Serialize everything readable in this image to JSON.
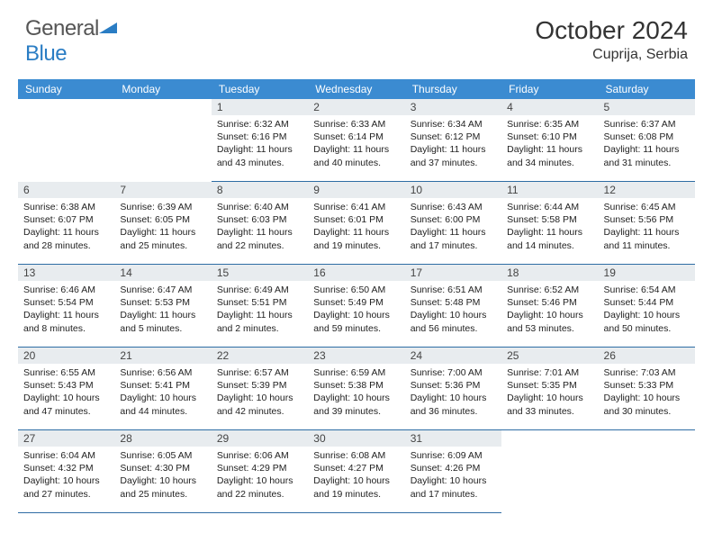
{
  "logo": {
    "text_a": "General",
    "text_b": "Blue"
  },
  "title": "October 2024",
  "location": "Cuprija, Serbia",
  "colors": {
    "header_bg": "#3b8bd1",
    "header_text": "#ffffff",
    "daynum_bg": "#e8ecef",
    "cell_border": "#2e6da4",
    "body_text": "#222222",
    "logo_gray": "#555555",
    "logo_blue": "#2a7dc4"
  },
  "day_names": [
    "Sunday",
    "Monday",
    "Tuesday",
    "Wednesday",
    "Thursday",
    "Friday",
    "Saturday"
  ],
  "weeks": [
    [
      null,
      null,
      {
        "n": "1",
        "sr": "6:32 AM",
        "ss": "6:16 PM",
        "dl": "11 hours and 43 minutes."
      },
      {
        "n": "2",
        "sr": "6:33 AM",
        "ss": "6:14 PM",
        "dl": "11 hours and 40 minutes."
      },
      {
        "n": "3",
        "sr": "6:34 AM",
        "ss": "6:12 PM",
        "dl": "11 hours and 37 minutes."
      },
      {
        "n": "4",
        "sr": "6:35 AM",
        "ss": "6:10 PM",
        "dl": "11 hours and 34 minutes."
      },
      {
        "n": "5",
        "sr": "6:37 AM",
        "ss": "6:08 PM",
        "dl": "11 hours and 31 minutes."
      }
    ],
    [
      {
        "n": "6",
        "sr": "6:38 AM",
        "ss": "6:07 PM",
        "dl": "11 hours and 28 minutes."
      },
      {
        "n": "7",
        "sr": "6:39 AM",
        "ss": "6:05 PM",
        "dl": "11 hours and 25 minutes."
      },
      {
        "n": "8",
        "sr": "6:40 AM",
        "ss": "6:03 PM",
        "dl": "11 hours and 22 minutes."
      },
      {
        "n": "9",
        "sr": "6:41 AM",
        "ss": "6:01 PM",
        "dl": "11 hours and 19 minutes."
      },
      {
        "n": "10",
        "sr": "6:43 AM",
        "ss": "6:00 PM",
        "dl": "11 hours and 17 minutes."
      },
      {
        "n": "11",
        "sr": "6:44 AM",
        "ss": "5:58 PM",
        "dl": "11 hours and 14 minutes."
      },
      {
        "n": "12",
        "sr": "6:45 AM",
        "ss": "5:56 PM",
        "dl": "11 hours and 11 minutes."
      }
    ],
    [
      {
        "n": "13",
        "sr": "6:46 AM",
        "ss": "5:54 PM",
        "dl": "11 hours and 8 minutes."
      },
      {
        "n": "14",
        "sr": "6:47 AM",
        "ss": "5:53 PM",
        "dl": "11 hours and 5 minutes."
      },
      {
        "n": "15",
        "sr": "6:49 AM",
        "ss": "5:51 PM",
        "dl": "11 hours and 2 minutes."
      },
      {
        "n": "16",
        "sr": "6:50 AM",
        "ss": "5:49 PM",
        "dl": "10 hours and 59 minutes."
      },
      {
        "n": "17",
        "sr": "6:51 AM",
        "ss": "5:48 PM",
        "dl": "10 hours and 56 minutes."
      },
      {
        "n": "18",
        "sr": "6:52 AM",
        "ss": "5:46 PM",
        "dl": "10 hours and 53 minutes."
      },
      {
        "n": "19",
        "sr": "6:54 AM",
        "ss": "5:44 PM",
        "dl": "10 hours and 50 minutes."
      }
    ],
    [
      {
        "n": "20",
        "sr": "6:55 AM",
        "ss": "5:43 PM",
        "dl": "10 hours and 47 minutes."
      },
      {
        "n": "21",
        "sr": "6:56 AM",
        "ss": "5:41 PM",
        "dl": "10 hours and 44 minutes."
      },
      {
        "n": "22",
        "sr": "6:57 AM",
        "ss": "5:39 PM",
        "dl": "10 hours and 42 minutes."
      },
      {
        "n": "23",
        "sr": "6:59 AM",
        "ss": "5:38 PM",
        "dl": "10 hours and 39 minutes."
      },
      {
        "n": "24",
        "sr": "7:00 AM",
        "ss": "5:36 PM",
        "dl": "10 hours and 36 minutes."
      },
      {
        "n": "25",
        "sr": "7:01 AM",
        "ss": "5:35 PM",
        "dl": "10 hours and 33 minutes."
      },
      {
        "n": "26",
        "sr": "7:03 AM",
        "ss": "5:33 PM",
        "dl": "10 hours and 30 minutes."
      }
    ],
    [
      {
        "n": "27",
        "sr": "6:04 AM",
        "ss": "4:32 PM",
        "dl": "10 hours and 27 minutes."
      },
      {
        "n": "28",
        "sr": "6:05 AM",
        "ss": "4:30 PM",
        "dl": "10 hours and 25 minutes."
      },
      {
        "n": "29",
        "sr": "6:06 AM",
        "ss": "4:29 PM",
        "dl": "10 hours and 22 minutes."
      },
      {
        "n": "30",
        "sr": "6:08 AM",
        "ss": "4:27 PM",
        "dl": "10 hours and 19 minutes."
      },
      {
        "n": "31",
        "sr": "6:09 AM",
        "ss": "4:26 PM",
        "dl": "10 hours and 17 minutes."
      },
      null,
      null
    ]
  ],
  "labels": {
    "sunrise": "Sunrise:",
    "sunset": "Sunset:",
    "daylight": "Daylight:"
  }
}
